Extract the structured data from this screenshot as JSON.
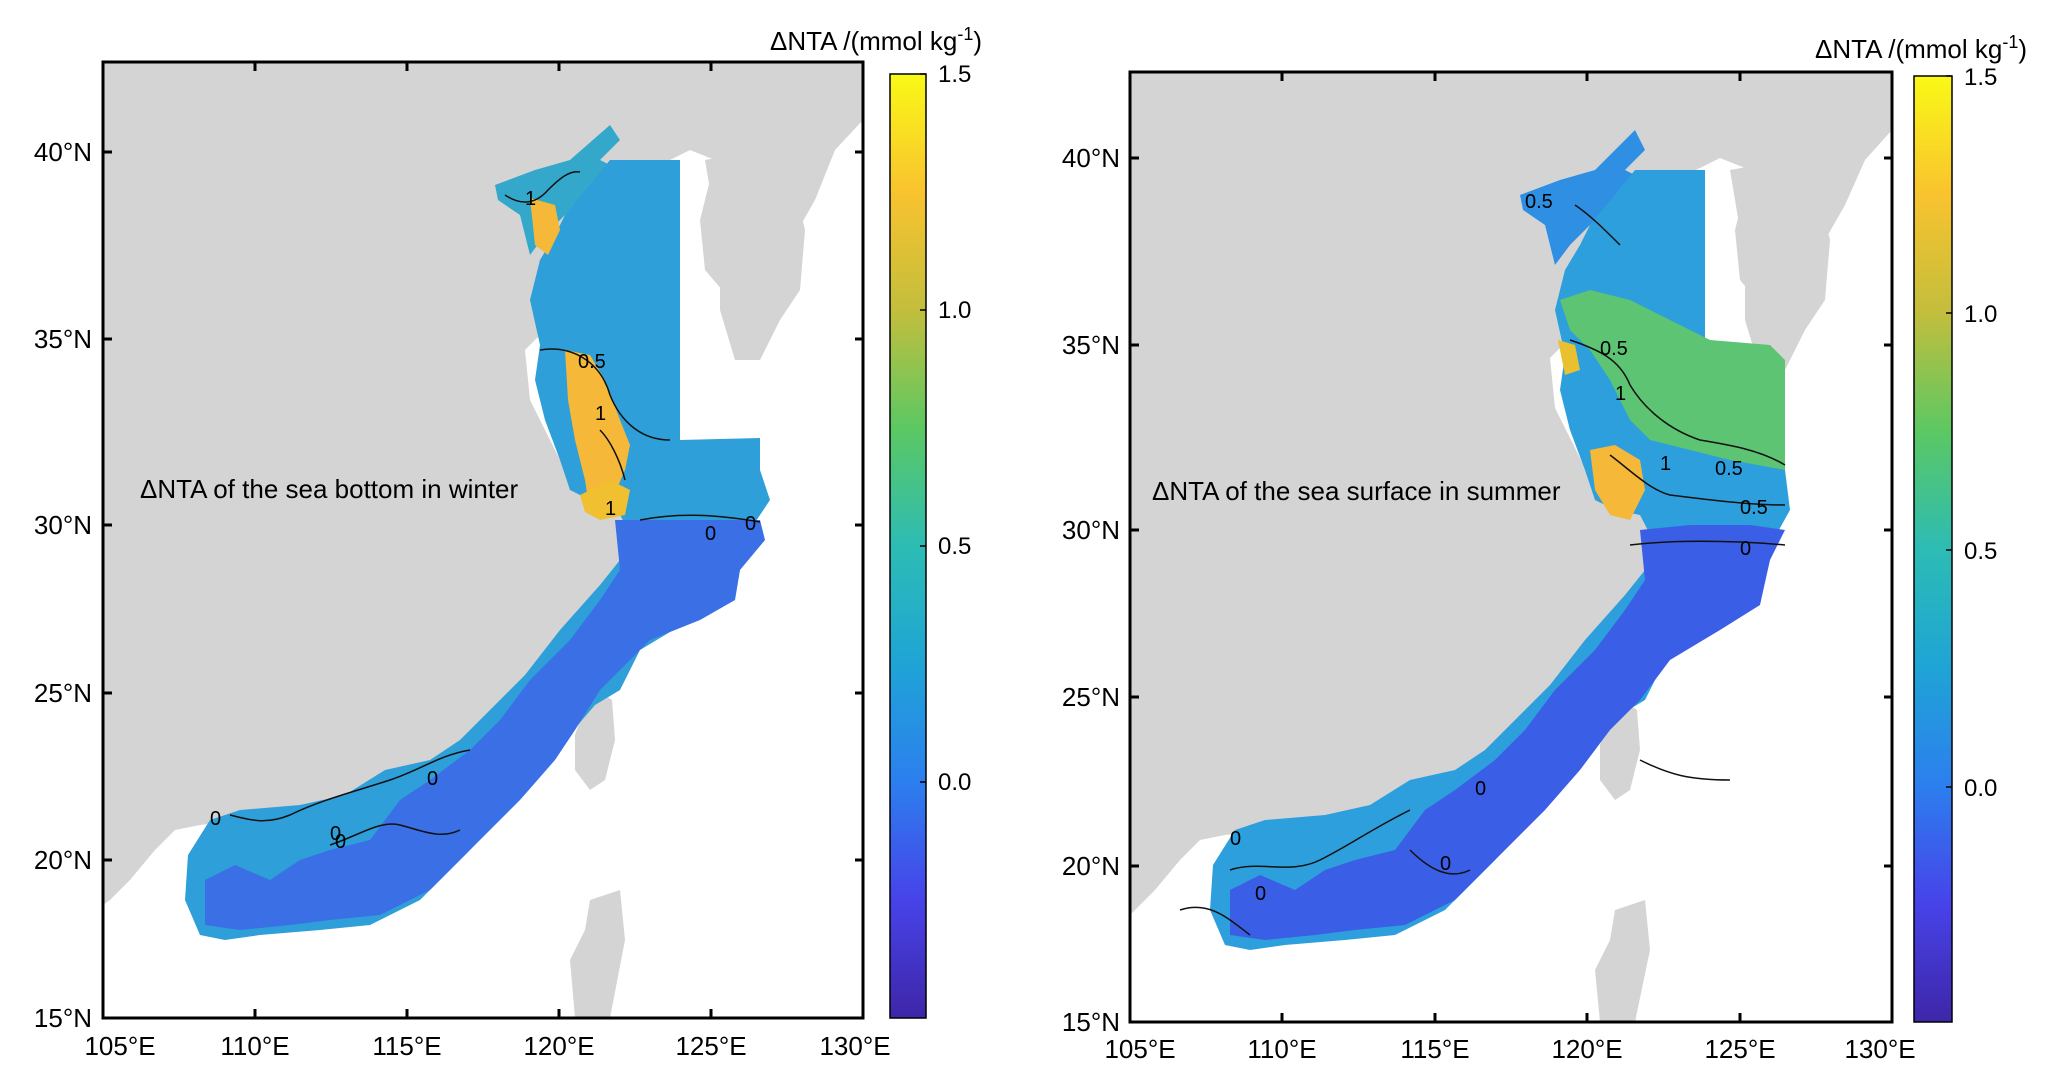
{
  "colorbar_stops": [
    "#3e26a8",
    "#4743e9",
    "#2c7fee",
    "#1fa4d6",
    "#2dbcb4",
    "#5cc863",
    "#c3be3c",
    "#f9c32f",
    "#f9f916"
  ],
  "land_color": "#d4d4d4",
  "panels": [
    {
      "id": "winter",
      "annotation": "ΔNTA of the sea bottom in winter",
      "colorbar_title": "ΔNTA /(mmol kg",
      "colorbar_title_sup": "-1",
      "colorbar_title_end": ")",
      "colorbar_ticks": [
        "1.5",
        "1.0",
        "0.5",
        "0.0"
      ],
      "lat_ticks": [
        "40°N",
        "35°N",
        "30°N",
        "25°N",
        "20°N",
        "15°N"
      ],
      "lon_ticks": [
        "105°E",
        "110°E",
        "115°E",
        "120°E",
        "125°E",
        "130°E"
      ],
      "contour_labels": [
        "1",
        "0.5",
        "1",
        "1",
        "0",
        "0",
        "0",
        "0",
        "0",
        "0"
      ]
    },
    {
      "id": "summer",
      "annotation": "ΔNTA of the sea surface in summer",
      "colorbar_title": "ΔNTA /(mmol kg",
      "colorbar_title_sup": "-1",
      "colorbar_title_end": ")",
      "colorbar_ticks": [
        "1.5",
        "1.0",
        "0.5",
        "0.0"
      ],
      "lat_ticks": [
        "40°N",
        "35°N",
        "30°N",
        "25°N",
        "20°N",
        "15°N"
      ],
      "lon_ticks": [
        "105°E",
        "110°E",
        "115°E",
        "120°E",
        "125°E",
        "130°E"
      ],
      "contour_labels": [
        "0.5",
        "0.5",
        "1",
        "1",
        "0.5",
        "0.5",
        "0",
        "0",
        "0",
        "0",
        "0"
      ]
    }
  ]
}
